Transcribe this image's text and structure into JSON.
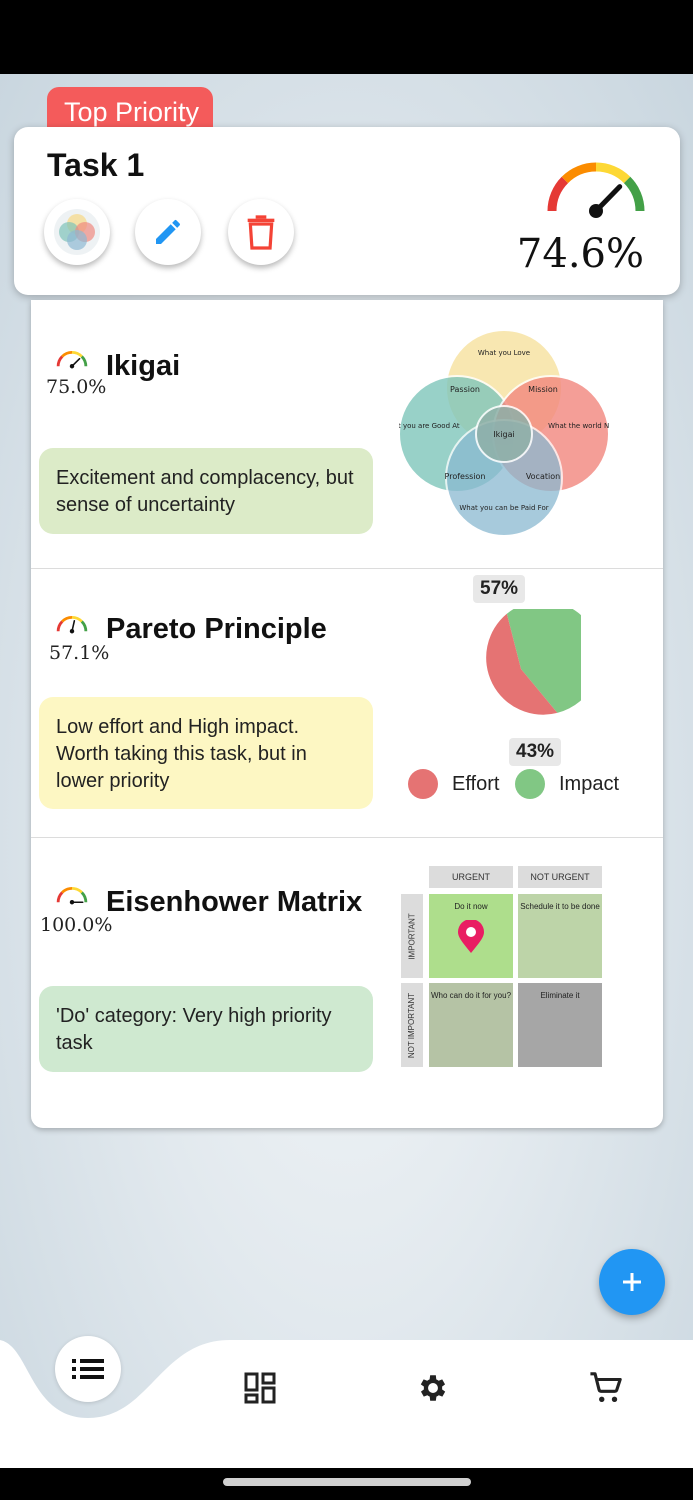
{
  "task": {
    "priority_tag": "Top Priority",
    "title": "Task 1",
    "score": "74.6%",
    "gauge_level": 0.746
  },
  "sections": {
    "ikigai": {
      "title": "Ikigai",
      "score": "75.0%",
      "gauge_level": 0.75,
      "note": "Excitement and complacency, but sense of uncertainty",
      "diagram": {
        "love": "What you Love",
        "good": "What you are Good At",
        "world": "What the world Needs",
        "paid": "What you can be Paid For",
        "passion": "Passion",
        "mission": "Mission",
        "profession": "Profession",
        "vocation": "Vocation",
        "center": "Ikigai"
      }
    },
    "pareto": {
      "title": "Pareto Principle",
      "score": "57.1%",
      "gauge_level": 0.571,
      "note": "Low effort and High impact. Worth taking this task, but in lower priority",
      "pie_top_label": "57%",
      "pie_bottom_label": "43%",
      "legend": [
        {
          "label": "Effort",
          "color": "#e57373"
        },
        {
          "label": "Impact",
          "color": "#81c784"
        }
      ]
    },
    "eisenhower": {
      "title": "Eisenhower Matrix",
      "score": "100.0%",
      "gauge_level": 1.0,
      "note": "'Do' category: Very high priority task",
      "col_urgent": "URGENT",
      "col_not_urgent": "NOT URGENT",
      "row_important": "IMPORTANT",
      "row_not_important": "NOT IMPORTANT",
      "cell_do": "Do it now",
      "cell_schedule": "Schedule it to be done",
      "cell_delegate": "Who can do it for you?",
      "cell_eliminate": "Eliminate it"
    }
  },
  "chart_data": {
    "type": "pie",
    "categories": [
      "Impact",
      "Effort"
    ],
    "values": [
      57,
      43
    ],
    "colors": [
      "#81c784",
      "#e57373"
    ]
  },
  "icons": {
    "fab": "plus-icon",
    "nav": [
      "list-icon",
      "dashboard-icon",
      "gear-icon",
      "cart-icon"
    ]
  },
  "colors": {
    "accent": "#2196f3",
    "tag": "#f45b5b",
    "note_green": "#dcebc8",
    "note_yellow": "#fdf7c3",
    "note_mint": "#cfe9d0"
  }
}
